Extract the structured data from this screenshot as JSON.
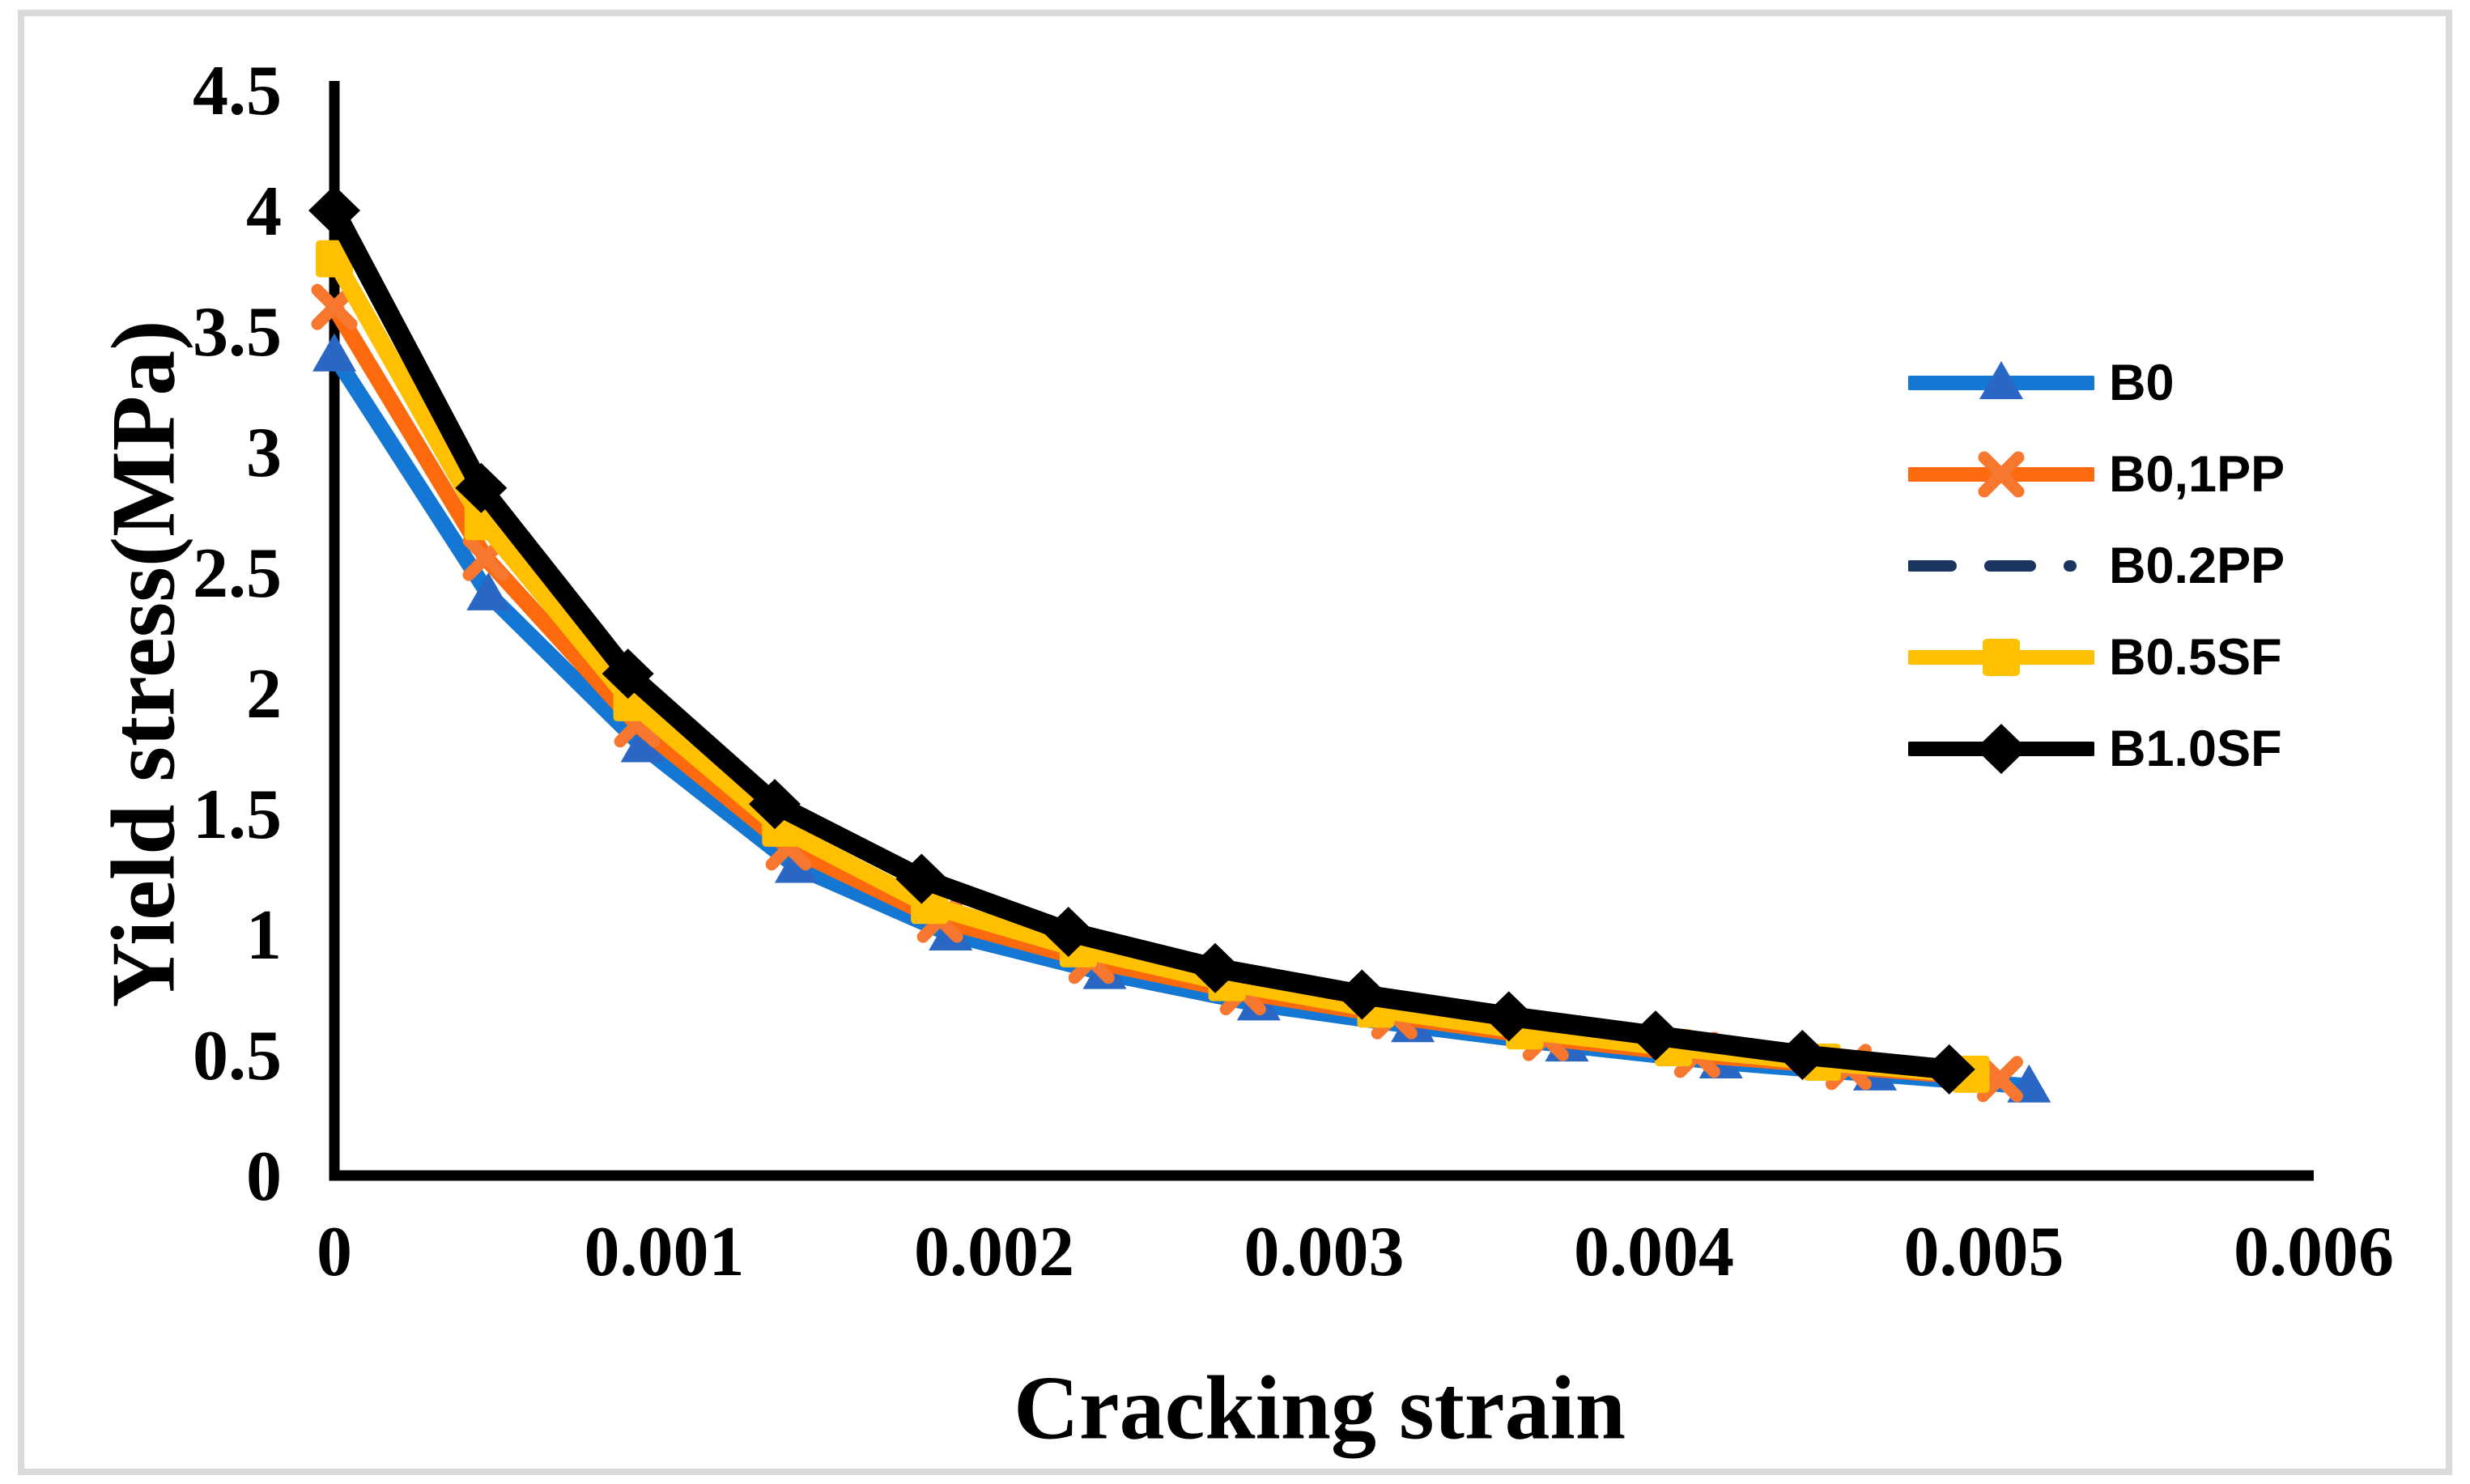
{
  "figure": {
    "background": "#FFFFFF",
    "border_color": "#DADADA"
  },
  "chart_data": {
    "type": "line",
    "title": "",
    "xlabel": "Cracking strain",
    "ylabel": "Yield stress(MPa)",
    "xlim": [
      0,
      0.006
    ],
    "ylim": [
      0,
      4.5
    ],
    "x_ticks": [
      "0",
      "0.001",
      "0.002",
      "0.003",
      "0.004",
      "0.005",
      "0.006"
    ],
    "y_ticks": [
      "0",
      "0.5",
      "1",
      "1.5",
      "2",
      "2.5",
      "3",
      "3.5",
      "4",
      "4.5"
    ],
    "grid": false,
    "legend_position": "right-center",
    "axis_color": "#000000",
    "text_color": "#000000",
    "series": [
      {
        "name": "B0",
        "color": "#1477D3",
        "marker": "triangle",
        "marker_color": "#2A67C5",
        "line_width": 20,
        "dash": null,
        "x": [
          0,
          0.000467,
          0.000934,
          0.001401,
          0.001868,
          0.002335,
          0.002802,
          0.003269,
          0.003736,
          0.004203,
          0.00467,
          0.005137
        ],
        "y": [
          3.4,
          2.41,
          1.78,
          1.28,
          1.0,
          0.84,
          0.71,
          0.62,
          0.54,
          0.47,
          0.42,
          0.37
        ]
      },
      {
        "name": "B0,1PP",
        "color": "#FC6A0D",
        "marker": "x",
        "marker_color": "#F8772E",
        "line_width": 20,
        "dash": null,
        "x": [
          0,
          0.000459,
          0.000918,
          0.001377,
          0.001836,
          0.002295,
          0.002754,
          0.003213,
          0.003672,
          0.004131,
          0.00459,
          0.005049
        ],
        "y": [
          3.6,
          2.56,
          1.87,
          1.36,
          1.06,
          0.89,
          0.76,
          0.66,
          0.57,
          0.5,
          0.45,
          0.4
        ]
      },
      {
        "name": "B0.2PP",
        "color": "#1A355F",
        "marker": "none",
        "marker_color": "#1A355F",
        "line_width": 13,
        "dash": [
          50,
          40,
          50,
          40,
          2,
          40
        ],
        "x": [
          0,
          0.000459,
          0.000918,
          0.001377,
          0.001836,
          0.002295,
          0.002754,
          0.003213,
          0.003672,
          0.004131,
          0.00459,
          0.005049
        ],
        "y": [
          3.6,
          2.56,
          1.87,
          1.36,
          1.06,
          0.89,
          0.76,
          0.66,
          0.57,
          0.5,
          0.45,
          0.4
        ]
      },
      {
        "name": "B0.5SF",
        "color": "#FFC002",
        "marker": "square",
        "marker_color": "#FFC002",
        "line_width": 22,
        "dash": null,
        "x": [
          0,
          0.000451,
          0.000902,
          0.001353,
          0.001804,
          0.002255,
          0.002706,
          0.003157,
          0.003608,
          0.004059,
          0.00451,
          0.004961
        ],
        "y": [
          3.8,
          2.71,
          1.96,
          1.44,
          1.12,
          0.94,
          0.8,
          0.69,
          0.6,
          0.53,
          0.47,
          0.42
        ]
      },
      {
        "name": "B1.0SF",
        "color": "#000000",
        "marker": "diamond",
        "marker_color": "#000000",
        "line_width": 25,
        "dash": null,
        "x": [
          0,
          0.000445,
          0.00089,
          0.001335,
          0.00178,
          0.002225,
          0.00267,
          0.003115,
          0.00356,
          0.004005,
          0.00445,
          0.004895
        ],
        "y": [
          4.0,
          2.85,
          2.08,
          1.54,
          1.23,
          1.01,
          0.86,
          0.75,
          0.66,
          0.58,
          0.5,
          0.44
        ]
      }
    ],
    "draw_order": [
      2,
      0,
      1,
      3,
      4
    ]
  }
}
